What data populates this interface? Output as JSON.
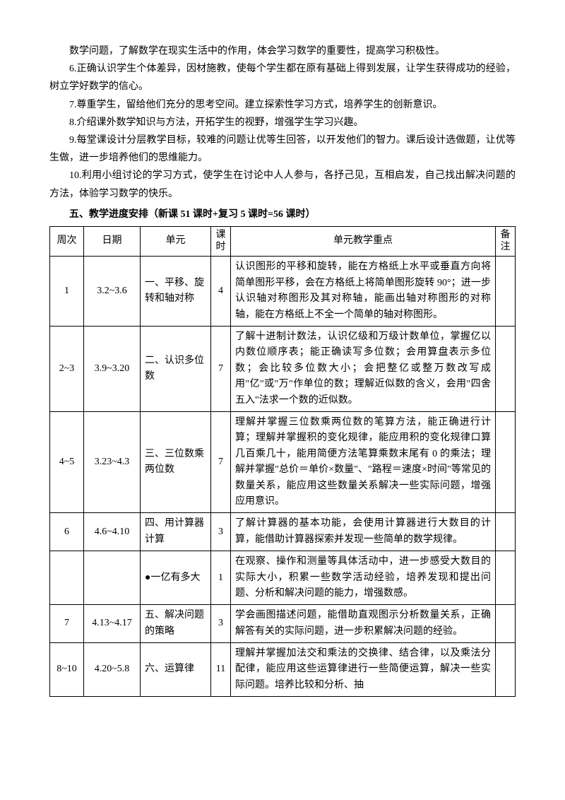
{
  "paragraphs": {
    "p0": "数学问题，了解数学在现实生活中的作用，体会学习数学的重要性，提高学习积极性。",
    "p6": "6.正确认识学生个体差异，因材施教，使每个学生都在原有基础上得到发展，让学生获得成功的经验，树立学好数学的信心。",
    "p7": "7.尊重学生，留给他们充分的思考空间。建立探索性学习方式，培养学生的创新意识。",
    "p8": "8.介绍课外数学知识与方法，开拓学生的视野，增强学生学习兴趣。",
    "p9": "9.每堂课设计分层教学目标，较难的问题让优等生回答，以开发他们的智力。课后设计选做题，让优等生做，进一步培养他们的思维能力。",
    "p10": "10.利用小组讨论的学习方式，使学生在讨论中人人参与，各抒己见，互相启发，自己找出解决问题的方法，体验学习数学的快乐。"
  },
  "heading5": "五、教学进度安排（新课 51 课时+复习 5 课时=56 课时）",
  "table": {
    "headers": {
      "week": "周次",
      "date": "日期",
      "unit": "单元",
      "hours": "课时",
      "focus": "单元教学重点",
      "note": "备注"
    },
    "rows": [
      {
        "week": "1",
        "date": "3.2~3.6",
        "unit": "一、平移、旋转和轴对称",
        "hours": "4",
        "focus": "认识图形的平移和旋转，能在方格纸上水平或垂直方向将简单图形平移，会在方格纸上将简单图形旋转 90°；进一步认识轴对称图形及其对称轴，能画出轴对称图形的对称轴，能在方格纸上不全一个简单的轴对称图形。",
        "note": ""
      },
      {
        "week": "2~3",
        "date": "3.9~3.20",
        "unit": "二、认识多位数",
        "hours": "7",
        "focus": "了解十进制计数法，认识亿级和万级计数单位，掌握亿以内数位顺序表；能正确读写多位数；会用算盘表示多位数；会比较多位数大小；会把整亿或整万数改写成用\"亿\"或\"万\"作单位的数；理解近似数的含义，会用\"四舍五入\"法求一个数的近似数。",
        "note": ""
      },
      {
        "week": "4~5",
        "date": "3.23~4.3",
        "unit": "三、三位数乘两位数",
        "hours": "7",
        "focus": "理解并掌握三位数乘两位数的笔算方法，能正确进行计算；理解并掌握积的变化规律，能应用积的变化规律口算几百乘几十，能用简便方法笔算乘数末尾有 0 的乘法；理解并掌握\"总价＝单价×数量\"、\"路程＝速度×时间\"等常见的数量关系，能应用这些数量关系解决一些实际问题，增强应用意识。",
        "note": ""
      },
      {
        "week": "6",
        "date": "4.6~4.10",
        "unit": "四、用计算器计算",
        "hours": "3",
        "focus": "了解计算器的基本功能，会使用计算器进行大数目的计算，能借助计算器探索并发现一些简单的数学规律。",
        "note": ""
      },
      {
        "week": "",
        "date": "",
        "unit": "●一亿有多大",
        "hours": "1",
        "focus": "在观察、操作和测量等具体活动中，进一步感受大数目的实际大小，积累一些数学活动经验，培养发现和提出问题、分析和解决问题的能力，增强数感。",
        "note": ""
      },
      {
        "week": "7",
        "date": "4.13~4.17",
        "unit": "五、解决问题的策略",
        "hours": "3",
        "focus": "学会画图描述问题，能借助直观图示分析数量关系，正确解答有关的实际问题，进一步积累解决问题的经验。",
        "note": ""
      },
      {
        "week": "8~10",
        "date": "4.20~5.8",
        "unit": "六、运算律",
        "hours": "11",
        "focus": "理解并掌握加法交和乘法的交换律、结合律，以及乘法分配律，能应用这些运算律进行一些简便运算，解决一些实际问题。培养比较和分析、抽",
        "note": ""
      }
    ]
  }
}
